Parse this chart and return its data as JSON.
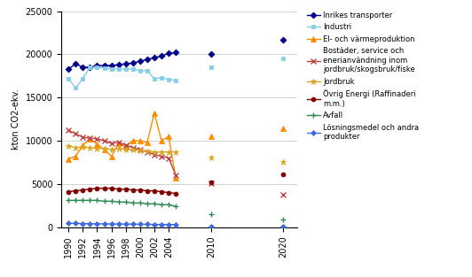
{
  "ylabel": "kton CO2-ekv.",
  "background_color": "#ffffff",
  "series_order": [
    "Inrikes transporter",
    "Industri",
    "El- och värmeproduktion",
    "Bostäder, service och energianvändning inom jordbruk/skogsbruk/fiske",
    "Jordbruk",
    "Övrig Energi (Raffinaderi m.m.)",
    "Avfall",
    "Lösningsmedel och andra produkter"
  ],
  "series": {
    "Inrikes transporter": {
      "color": "#00008B",
      "marker": "D",
      "markersize": 3.5,
      "linewidth": 1.0,
      "years_dense": [
        1990,
        1991,
        1992,
        1993,
        1994,
        1995,
        1996,
        1997,
        1998,
        1999,
        2000,
        2001,
        2002,
        2003,
        2004,
        2005
      ],
      "values_dense": [
        18300,
        18900,
        18500,
        18500,
        18700,
        18700,
        18700,
        18800,
        18900,
        19000,
        19200,
        19400,
        19600,
        19800,
        20100,
        20200
      ],
      "years_sparse": [
        2010,
        2020
      ],
      "values_sparse": [
        20000,
        21700
      ]
    },
    "Industri": {
      "color": "#87CEEB",
      "marker": "s",
      "markersize": 3.5,
      "linewidth": 1.0,
      "years_dense": [
        1990,
        1991,
        1992,
        1993,
        1994,
        1995,
        1996,
        1997,
        1998,
        1999,
        2000,
        2001,
        2002,
        2003,
        2004,
        2005
      ],
      "values_dense": [
        17200,
        16100,
        17200,
        18500,
        18500,
        18400,
        18300,
        18300,
        18300,
        18300,
        18100,
        18100,
        17200,
        17300,
        17100,
        17000
      ],
      "years_sparse": [
        2010,
        2020
      ],
      "values_sparse": [
        18500,
        19500
      ]
    },
    "El- och värmeproduktion": {
      "color": "#FF8C00",
      "marker": "^",
      "markersize": 4,
      "linewidth": 1.0,
      "years_dense": [
        1990,
        1991,
        1992,
        1993,
        1994,
        1995,
        1996,
        1997,
        1998,
        1999,
        2000,
        2001,
        2002,
        2003,
        2004,
        2005
      ],
      "values_dense": [
        7900,
        8200,
        9500,
        10200,
        9600,
        9000,
        8200,
        9700,
        9300,
        10000,
        10000,
        9800,
        13200,
        10000,
        10500,
        5700
      ],
      "years_sparse": [
        2010,
        2020
      ],
      "values_sparse": [
        10500,
        11400
      ]
    },
    "Bostäder, service och energianvändning inom jordbruk/skogsbruk/fiske": {
      "color": "#C04040",
      "marker": "x",
      "markersize": 4,
      "linewidth": 1.0,
      "years_dense": [
        1990,
        1991,
        1992,
        1993,
        1994,
        1995,
        1996,
        1997,
        1998,
        1999,
        2000,
        2001,
        2002,
        2003,
        2004,
        2005
      ],
      "values_dense": [
        11200,
        10800,
        10400,
        10300,
        10200,
        10000,
        9700,
        9800,
        9500,
        9200,
        9000,
        8700,
        8400,
        8200,
        8000,
        6000
      ],
      "years_sparse": [
        2010,
        2020
      ],
      "values_sparse": [
        5100,
        3800
      ]
    },
    "Jordbruk": {
      "color": "#DAA520",
      "marker": "*",
      "markersize": 5,
      "linewidth": 1.0,
      "years_dense": [
        1990,
        1991,
        1992,
        1993,
        1994,
        1995,
        1996,
        1997,
        1998,
        1999,
        2000,
        2001,
        2002,
        2003,
        2004,
        2005
      ],
      "values_dense": [
        9400,
        9200,
        9300,
        9200,
        9100,
        9100,
        9000,
        9100,
        9000,
        9000,
        8900,
        8800,
        8700,
        8700,
        8700,
        8700
      ],
      "years_sparse": [
        2010,
        2020
      ],
      "values_sparse": [
        8100,
        7500
      ]
    },
    "Övrig Energi (Raffinaderi m.m.)": {
      "color": "#800000",
      "marker": "o",
      "markersize": 3.5,
      "linewidth": 1.0,
      "years_dense": [
        1990,
        1991,
        1992,
        1993,
        1994,
        1995,
        1996,
        1997,
        1998,
        1999,
        2000,
        2001,
        2002,
        2003,
        2004,
        2005
      ],
      "values_dense": [
        4100,
        4200,
        4300,
        4400,
        4500,
        4500,
        4500,
        4400,
        4400,
        4300,
        4300,
        4200,
        4200,
        4100,
        4000,
        3900
      ],
      "years_sparse": [
        2010,
        2020
      ],
      "values_sparse": [
        5200,
        6100
      ]
    },
    "Avfall": {
      "color": "#2E8B57",
      "marker": "+",
      "markersize": 4,
      "linewidth": 1.0,
      "years_dense": [
        1990,
        1991,
        1992,
        1993,
        1994,
        1995,
        1996,
        1997,
        1998,
        1999,
        2000,
        2001,
        2002,
        2003,
        2004,
        2005
      ],
      "values_dense": [
        3100,
        3100,
        3100,
        3100,
        3100,
        3000,
        3000,
        2900,
        2900,
        2800,
        2800,
        2700,
        2700,
        2600,
        2600,
        2400
      ],
      "years_sparse": [
        2010,
        2020
      ],
      "values_sparse": [
        1500,
        900
      ]
    },
    "Lösningsmedel och andra produkter": {
      "color": "#4169E1",
      "marker": "D",
      "markersize": 3,
      "linewidth": 1.0,
      "years_dense": [
        1990,
        1991,
        1992,
        1993,
        1994,
        1995,
        1996,
        1997,
        1998,
        1999,
        2000,
        2001,
        2002,
        2003,
        2004,
        2005
      ],
      "values_dense": [
        450,
        430,
        420,
        400,
        390,
        380,
        370,
        360,
        360,
        350,
        340,
        330,
        320,
        310,
        300,
        300
      ],
      "years_sparse": [
        2010,
        2020
      ],
      "values_sparse": [
        100,
        100
      ]
    }
  },
  "legend_texts": [
    "Inrikes transporter",
    "Industri",
    "El- och värmeproduktion",
    "Bostäder, service och\nenerianvändning inom\njordbruk/skogsbruk/fiske",
    "Jordbruk",
    "Övrig Energi (Raffinaderi\nm.m.)",
    "Avfall",
    "Lösningsmedel och andra\nprodukter"
  ],
  "ylim": [
    0,
    25000
  ],
  "yticks": [
    0,
    5000,
    10000,
    15000,
    20000,
    25000
  ],
  "xticks_dense": [
    1990,
    1992,
    1994,
    1996,
    1998,
    2000,
    2002,
    2004
  ],
  "xticks_sparse": [
    2010,
    2020
  ],
  "grid_color": "#C0C0C0",
  "grid_linewidth": 0.5
}
